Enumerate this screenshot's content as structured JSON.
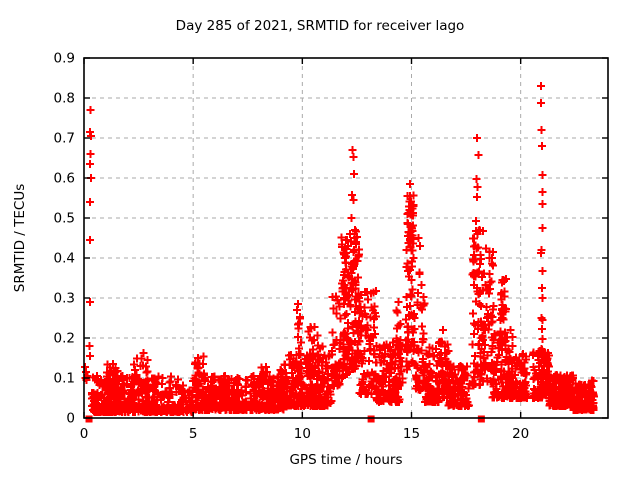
{
  "chart": {
    "title": "Day 285 of 2021, SRMTID for receiver lago",
    "xlabel": "GPS time / hours",
    "ylabel": "SRMTID / TECUs"
  },
  "chart_data": {
    "type": "scatter",
    "title": "Day 285 of 2021, SRMTID for receiver lago",
    "xlabel": "GPS time / hours",
    "ylabel": "SRMTID / TECUs",
    "xlim": [
      0,
      24
    ],
    "ylim": [
      0,
      0.9
    ],
    "x_ticks": [
      0,
      5,
      10,
      15,
      20
    ],
    "x_tick_labels": [
      "0",
      "5",
      "10",
      "15",
      "20"
    ],
    "y_ticks": [
      0,
      0.1,
      0.2,
      0.3,
      0.4,
      0.5,
      0.6,
      0.7,
      0.8,
      0.9
    ],
    "y_tick_labels": [
      "0",
      "0.1",
      "0.2",
      "0.3",
      "0.4",
      "0.5",
      "0.6",
      "0.7",
      "0.8",
      "0.9"
    ],
    "grid": true,
    "legend_position": "none",
    "marker": "plus",
    "marker_color": "#ff0000",
    "grid_color": "#aaaaaa",
    "frame_color": "#000000",
    "series_name": "SRMTID",
    "zero_square_points_x": [
      0.23,
      13.15,
      18.2
    ],
    "outlier_points": [
      [
        0.3,
        0.77
      ],
      [
        0.28,
        0.715
      ],
      [
        0.33,
        0.705
      ],
      [
        0.3,
        0.66
      ],
      [
        0.28,
        0.635
      ],
      [
        0.31,
        0.6
      ],
      [
        0.28,
        0.54
      ],
      [
        0.27,
        0.445
      ],
      [
        0.27,
        0.29
      ],
      [
        0.26,
        0.18
      ],
      [
        0.27,
        0.155
      ],
      [
        0.05,
        0.128
      ],
      [
        0.1,
        0.115
      ],
      [
        0.16,
        0.105
      ],
      [
        0.06,
        0.1
      ],
      [
        0.12,
        0.095
      ],
      [
        2.72,
        0.163
      ],
      [
        9.8,
        0.285
      ],
      [
        9.75,
        0.27
      ],
      [
        11.95,
        0.4
      ],
      [
        12.05,
        0.445
      ],
      [
        12.1,
        0.43
      ],
      [
        12.3,
        0.67
      ],
      [
        12.34,
        0.652
      ],
      [
        12.37,
        0.61
      ],
      [
        12.28,
        0.558
      ],
      [
        12.34,
        0.545
      ],
      [
        12.25,
        0.5
      ],
      [
        12.42,
        0.47
      ],
      [
        14.92,
        0.585
      ],
      [
        15.32,
        0.45
      ],
      [
        15.38,
        0.43
      ],
      [
        16.45,
        0.22
      ],
      [
        18.0,
        0.7
      ],
      [
        18.06,
        0.658
      ],
      [
        17.97,
        0.598
      ],
      [
        18.03,
        0.578
      ],
      [
        18.0,
        0.552
      ],
      [
        17.95,
        0.492
      ],
      [
        18.06,
        0.468
      ],
      [
        20.93,
        0.83
      ],
      [
        20.94,
        0.787
      ],
      [
        20.95,
        0.72
      ],
      [
        20.97,
        0.68
      ],
      [
        20.99,
        0.607
      ],
      [
        21.0,
        0.565
      ],
      [
        21.0,
        0.535
      ],
      [
        21.0,
        0.475
      ],
      [
        20.96,
        0.42
      ],
      [
        20.94,
        0.413
      ],
      [
        20.99,
        0.368
      ],
      [
        20.97,
        0.325
      ],
      [
        21.0,
        0.3
      ],
      [
        20.95,
        0.25
      ],
      [
        20.99,
        0.245
      ],
      [
        20.97,
        0.222
      ],
      [
        21.0,
        0.197
      ],
      [
        20.96,
        0.172
      ]
    ],
    "cluster_columns": [
      "x_min",
      "x_max",
      "y_min",
      "y_max",
      "count",
      "bottom_bias"
    ],
    "dense_clusters": [
      [
        0.35,
        5.0,
        0.015,
        0.105,
        420,
        2.3
      ],
      [
        5.0,
        9.2,
        0.02,
        0.105,
        360,
        2.1
      ],
      [
        9.0,
        11.35,
        0.03,
        0.16,
        280,
        1.9
      ],
      [
        13.35,
        14.45,
        0.04,
        0.2,
        120,
        1.9
      ],
      [
        15.55,
        16.25,
        0.04,
        0.18,
        80,
        1.9
      ],
      [
        16.7,
        17.65,
        0.03,
        0.14,
        100,
        2.0
      ],
      [
        18.7,
        19.65,
        0.05,
        0.22,
        90,
        1.9
      ],
      [
        19.4,
        20.3,
        0.05,
        0.16,
        110,
        1.9
      ],
      [
        20.55,
        21.35,
        0.05,
        0.17,
        100,
        1.8
      ],
      [
        21.3,
        22.4,
        0.03,
        0.11,
        160,
        1.9
      ],
      [
        22.4,
        23.35,
        0.02,
        0.095,
        150,
        1.9
      ],
      [
        1.05,
        1.6,
        0.05,
        0.135,
        35,
        1.6
      ],
      [
        2.15,
        2.95,
        0.06,
        0.15,
        30,
        1.6
      ],
      [
        5.05,
        5.55,
        0.05,
        0.16,
        30,
        1.6
      ],
      [
        6.2,
        6.65,
        0.05,
        0.125,
        22,
        1.5
      ],
      [
        8.05,
        8.45,
        0.05,
        0.135,
        20,
        1.5
      ],
      [
        9.65,
        9.95,
        0.08,
        0.28,
        20,
        1.4
      ],
      [
        10.2,
        10.55,
        0.07,
        0.25,
        22,
        1.4
      ],
      [
        10.6,
        10.95,
        0.07,
        0.22,
        20,
        1.4
      ],
      [
        11.35,
        11.75,
        0.08,
        0.31,
        40,
        1.4
      ],
      [
        11.8,
        12.15,
        0.1,
        0.46,
        70,
        1.25
      ],
      [
        12.18,
        12.6,
        0.12,
        0.47,
        80,
        1.2
      ],
      [
        12.6,
        13.4,
        0.06,
        0.32,
        90,
        1.7
      ],
      [
        14.3,
        14.6,
        0.08,
        0.3,
        28,
        1.3
      ],
      [
        14.75,
        15.15,
        0.12,
        0.43,
        55,
        1.2
      ],
      [
        14.8,
        15.12,
        0.43,
        0.56,
        42,
        1.0
      ],
      [
        15.2,
        15.6,
        0.07,
        0.38,
        45,
        1.5
      ],
      [
        16.25,
        16.7,
        0.05,
        0.21,
        55,
        1.5
      ],
      [
        17.78,
        18.28,
        0.08,
        0.47,
        80,
        1.3
      ],
      [
        18.3,
        18.75,
        0.09,
        0.43,
        55,
        1.35
      ],
      [
        19.05,
        19.35,
        0.18,
        0.35,
        35,
        1.1
      ]
    ],
    "seed": 285
  }
}
